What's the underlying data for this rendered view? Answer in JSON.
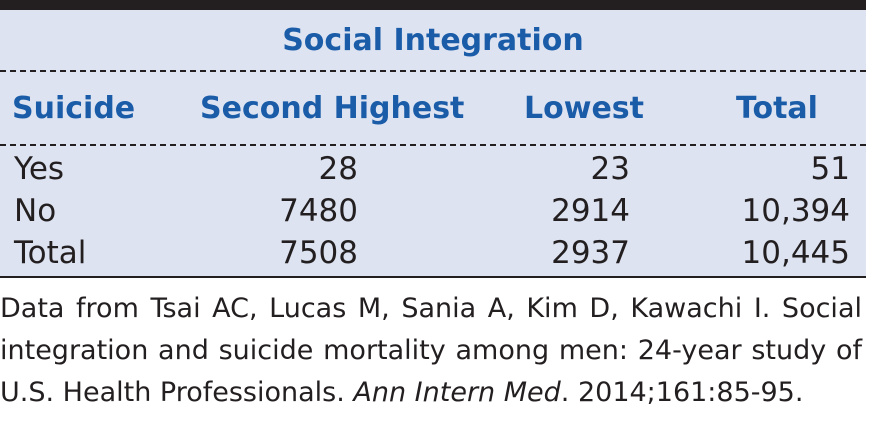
{
  "table": {
    "group_header": "Social Integration",
    "columns": [
      "Suicide",
      "Second Highest",
      "Lowest",
      "Total"
    ],
    "rows": [
      {
        "label": "Yes",
        "second_highest": "28",
        "lowest": "23",
        "total": "51"
      },
      {
        "label": "No",
        "second_highest": "7480",
        "lowest": "2914",
        "total": "10,394"
      },
      {
        "label": "Total",
        "second_highest": "7508",
        "lowest": "2937",
        "total": "10,445"
      }
    ]
  },
  "source": {
    "text_before": "Data from Tsai AC, Lucas M, Sania A, Kim D, Kawachi I. Social integration and suicide mortality among men: 24-year study of U.S. Health Professionals. ",
    "journal": "Ann Intern Med",
    "text_after": ". 2014;161:85-95."
  },
  "colors": {
    "header_text": "#1a5ca8",
    "table_background": "#dde3f1",
    "rule": "#231f20"
  }
}
